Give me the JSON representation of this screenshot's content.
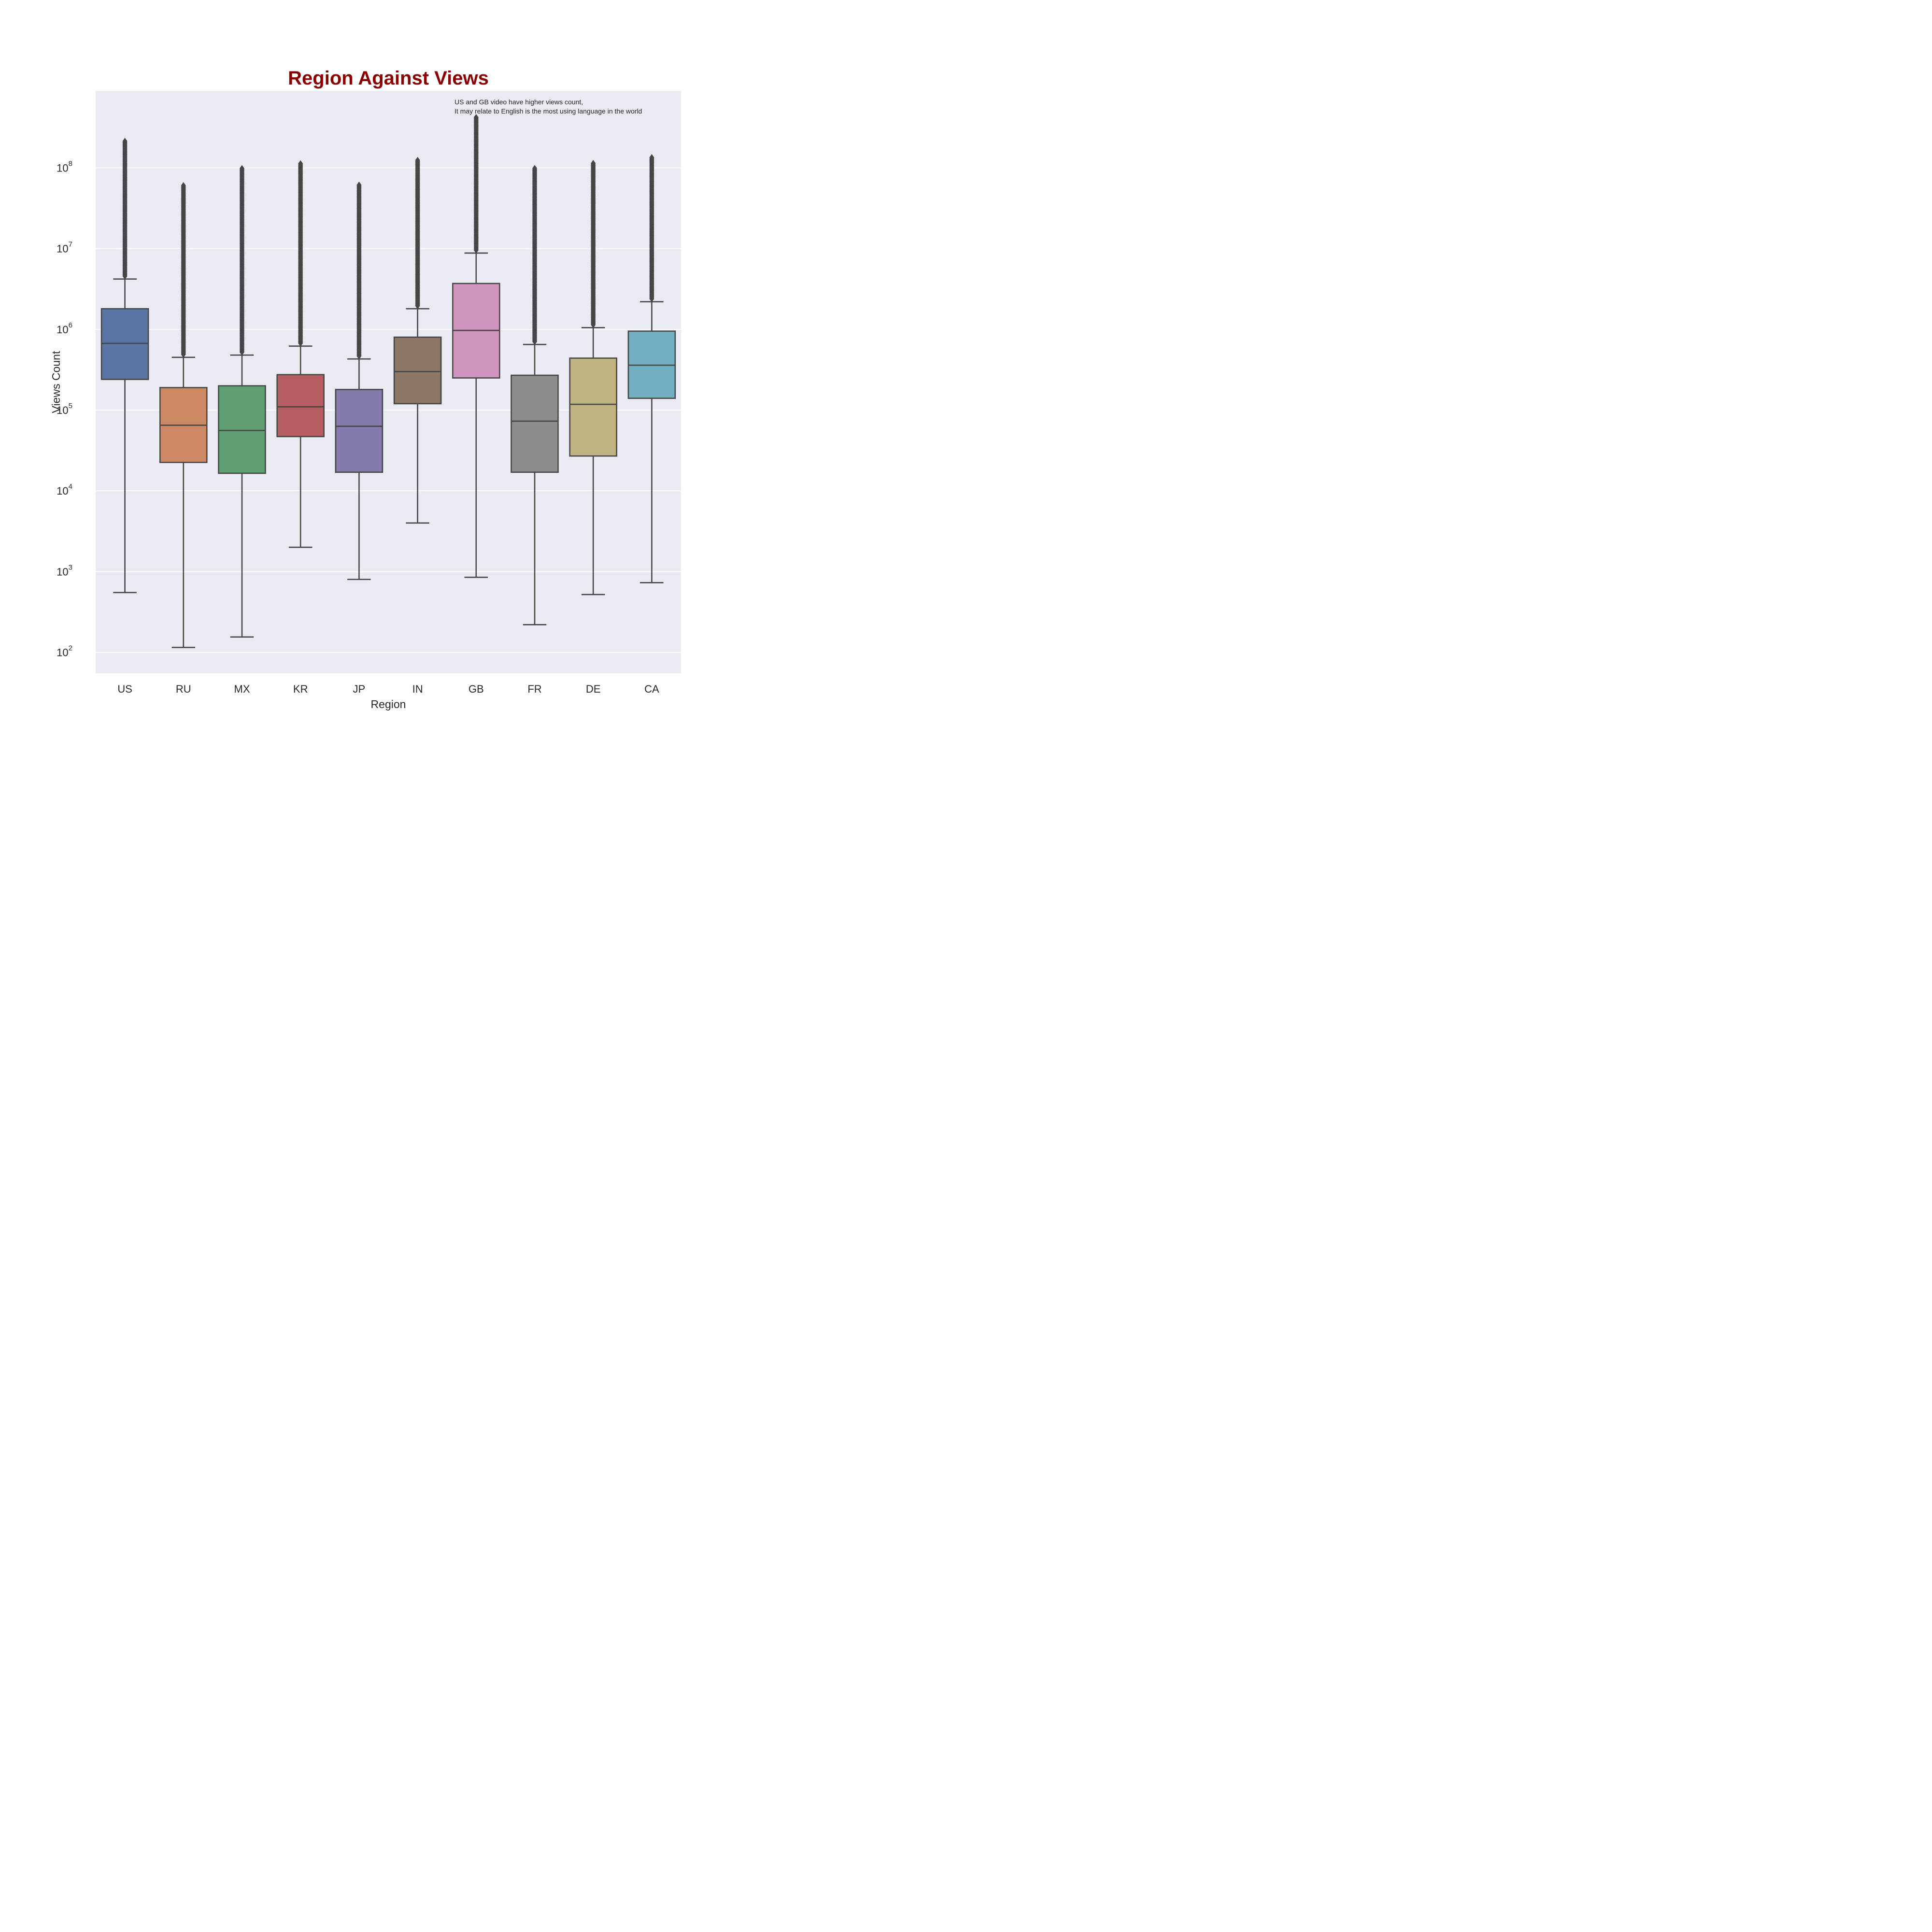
{
  "chart_data": {
    "type": "box",
    "title": "Region Against Views",
    "title_color": "#8b0000",
    "xlabel": "Region",
    "ylabel": "Views Count",
    "yscale": "log",
    "ylim": [
      55,
      900000000
    ],
    "ytick_base": "10",
    "yticks": [
      {
        "value": 100,
        "exp": "2"
      },
      {
        "value": 1000,
        "exp": "3"
      },
      {
        "value": 10000,
        "exp": "4"
      },
      {
        "value": 100000,
        "exp": "5"
      },
      {
        "value": 1000000,
        "exp": "6"
      },
      {
        "value": 10000000,
        "exp": "7"
      },
      {
        "value": 100000000,
        "exp": "8"
      }
    ],
    "grid": true,
    "background": "#eaeaf2",
    "annotation": [
      "US and GB video have higher views count,",
      "It may relate to English is the most using language in the world"
    ],
    "categories": [
      "US",
      "RU",
      "MX",
      "KR",
      "JP",
      "IN",
      "GB",
      "FR",
      "DE",
      "CA"
    ],
    "boxes": [
      {
        "label": "US",
        "color": "#5975a4",
        "whisker_low": 550,
        "q1": 240000,
        "median": 670000,
        "q3": 1800000,
        "whisker_high": 4200000,
        "outlier_max": 220000000
      },
      {
        "label": "RU",
        "color": "#cc8963",
        "whisker_low": 115,
        "q1": 22500,
        "median": 65000,
        "q3": 190000,
        "whisker_high": 450000,
        "outlier_max": 62000000
      },
      {
        "label": "MX",
        "color": "#5f9e6e",
        "whisker_low": 155,
        "q1": 16500,
        "median": 56000,
        "q3": 200000,
        "whisker_high": 480000,
        "outlier_max": 100000000
      },
      {
        "label": "KR",
        "color": "#b55d60",
        "whisker_low": 2000,
        "q1": 47000,
        "median": 110000,
        "q3": 275000,
        "whisker_high": 620000,
        "outlier_max": 115000000
      },
      {
        "label": "JP",
        "color": "#857aab",
        "whisker_low": 800,
        "q1": 17000,
        "median": 63000,
        "q3": 180000,
        "whisker_high": 430000,
        "outlier_max": 62000000
      },
      {
        "label": "IN",
        "color": "#8d7866",
        "whisker_low": 4000,
        "q1": 120000,
        "median": 300000,
        "q3": 800000,
        "whisker_high": 1800000,
        "outlier_max": 125000000
      },
      {
        "label": "GB",
        "color": "#d095bf",
        "whisker_low": 850,
        "q1": 250000,
        "median": 970000,
        "q3": 3700000,
        "whisker_high": 8800000,
        "outlier_max": 430000000
      },
      {
        "label": "FR",
        "color": "#8c8c8c",
        "whisker_low": 220,
        "q1": 17000,
        "median": 73000,
        "q3": 270000,
        "whisker_high": 650000,
        "outlier_max": 100000000
      },
      {
        "label": "DE",
        "color": "#c1b37f",
        "whisker_low": 520,
        "q1": 27000,
        "median": 118000,
        "q3": 440000,
        "whisker_high": 1050000,
        "outlier_max": 115000000
      },
      {
        "label": "CA",
        "color": "#71aec0",
        "whisker_low": 730,
        "q1": 140000,
        "median": 360000,
        "q3": 950000,
        "whisker_high": 2200000,
        "outlier_max": 135000000
      }
    ]
  }
}
